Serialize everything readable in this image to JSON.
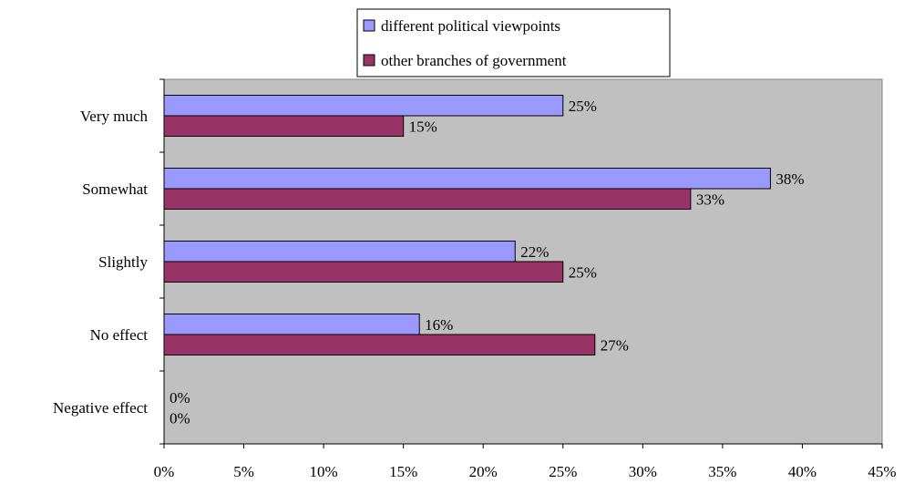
{
  "chart_data": {
    "type": "bar",
    "orientation": "horizontal",
    "categories": [
      "Very much",
      "Somewhat",
      "Slightly",
      "No effect",
      "Negative effect"
    ],
    "series": [
      {
        "name": "different political viewpoints",
        "color": "#9999ff",
        "values": [
          25,
          38,
          22,
          16,
          0
        ],
        "labels": [
          "25%",
          "38%",
          "22%",
          "16%",
          "0%"
        ]
      },
      {
        "name": "other branches of government",
        "color": "#993366",
        "values": [
          15,
          33,
          25,
          27,
          0
        ],
        "labels": [
          "15%",
          "33%",
          "25%",
          "27%",
          "0%"
        ]
      }
    ],
    "xlim": [
      0,
      45
    ],
    "x_ticks": [
      0,
      5,
      10,
      15,
      20,
      25,
      30,
      35,
      40,
      45
    ],
    "x_tick_labels": [
      "0%",
      "5%",
      "10%",
      "15%",
      "20%",
      "25%",
      "30%",
      "35%",
      "40%",
      "45%"
    ],
    "plot_background": "#c0c0c0",
    "grid": false,
    "legend_position": "top"
  }
}
